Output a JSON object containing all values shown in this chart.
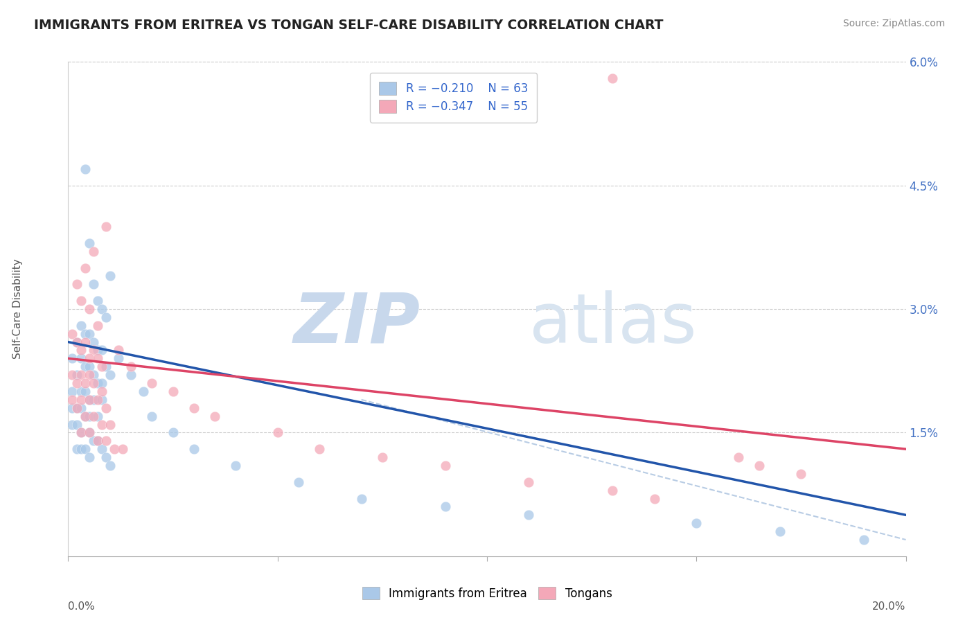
{
  "title": "IMMIGRANTS FROM ERITREA VS TONGAN SELF-CARE DISABILITY CORRELATION CHART",
  "source": "Source: ZipAtlas.com",
  "ylabel": "Self-Care Disability",
  "xlim": [
    0.0,
    0.2
  ],
  "ylim": [
    0.0,
    0.06
  ],
  "yticks_right": [
    0.0,
    0.015,
    0.03,
    0.045,
    0.06
  ],
  "ytick_labels_right": [
    "",
    "1.5%",
    "3.0%",
    "4.5%",
    "6.0%"
  ],
  "xticks": [
    0.0,
    0.05,
    0.1,
    0.15,
    0.2
  ],
  "scatter_blue": [
    [
      0.004,
      0.047
    ],
    [
      0.005,
      0.038
    ],
    [
      0.01,
      0.034
    ],
    [
      0.006,
      0.033
    ],
    [
      0.007,
      0.031
    ],
    [
      0.008,
      0.03
    ],
    [
      0.009,
      0.029
    ],
    [
      0.003,
      0.028
    ],
    [
      0.004,
      0.027
    ],
    [
      0.005,
      0.027
    ],
    [
      0.002,
      0.026
    ],
    [
      0.006,
      0.026
    ],
    [
      0.007,
      0.025
    ],
    [
      0.008,
      0.025
    ],
    [
      0.001,
      0.024
    ],
    [
      0.003,
      0.024
    ],
    [
      0.004,
      0.023
    ],
    [
      0.005,
      0.023
    ],
    [
      0.009,
      0.023
    ],
    [
      0.01,
      0.022
    ],
    [
      0.002,
      0.022
    ],
    [
      0.006,
      0.022
    ],
    [
      0.007,
      0.021
    ],
    [
      0.008,
      0.021
    ],
    [
      0.001,
      0.02
    ],
    [
      0.003,
      0.02
    ],
    [
      0.004,
      0.02
    ],
    [
      0.005,
      0.019
    ],
    [
      0.006,
      0.019
    ],
    [
      0.008,
      0.019
    ],
    [
      0.001,
      0.018
    ],
    [
      0.002,
      0.018
    ],
    [
      0.003,
      0.018
    ],
    [
      0.004,
      0.017
    ],
    [
      0.005,
      0.017
    ],
    [
      0.007,
      0.017
    ],
    [
      0.001,
      0.016
    ],
    [
      0.002,
      0.016
    ],
    [
      0.003,
      0.015
    ],
    [
      0.005,
      0.015
    ],
    [
      0.006,
      0.014
    ],
    [
      0.007,
      0.014
    ],
    [
      0.002,
      0.013
    ],
    [
      0.003,
      0.013
    ],
    [
      0.004,
      0.013
    ],
    [
      0.008,
      0.013
    ],
    [
      0.005,
      0.012
    ],
    [
      0.009,
      0.012
    ],
    [
      0.01,
      0.011
    ],
    [
      0.012,
      0.024
    ],
    [
      0.015,
      0.022
    ],
    [
      0.018,
      0.02
    ],
    [
      0.02,
      0.017
    ],
    [
      0.025,
      0.015
    ],
    [
      0.03,
      0.013
    ],
    [
      0.04,
      0.011
    ],
    [
      0.055,
      0.009
    ],
    [
      0.07,
      0.007
    ],
    [
      0.09,
      0.006
    ],
    [
      0.11,
      0.005
    ],
    [
      0.15,
      0.004
    ],
    [
      0.17,
      0.003
    ],
    [
      0.19,
      0.002
    ]
  ],
  "scatter_pink": [
    [
      0.002,
      0.033
    ],
    [
      0.004,
      0.035
    ],
    [
      0.009,
      0.04
    ],
    [
      0.006,
      0.037
    ],
    [
      0.003,
      0.031
    ],
    [
      0.005,
      0.03
    ],
    [
      0.007,
      0.028
    ],
    [
      0.001,
      0.027
    ],
    [
      0.002,
      0.026
    ],
    [
      0.004,
      0.026
    ],
    [
      0.006,
      0.025
    ],
    [
      0.003,
      0.025
    ],
    [
      0.005,
      0.024
    ],
    [
      0.007,
      0.024
    ],
    [
      0.008,
      0.023
    ],
    [
      0.001,
      0.022
    ],
    [
      0.003,
      0.022
    ],
    [
      0.005,
      0.022
    ],
    [
      0.002,
      0.021
    ],
    [
      0.004,
      0.021
    ],
    [
      0.006,
      0.021
    ],
    [
      0.008,
      0.02
    ],
    [
      0.001,
      0.019
    ],
    [
      0.003,
      0.019
    ],
    [
      0.005,
      0.019
    ],
    [
      0.007,
      0.019
    ],
    [
      0.009,
      0.018
    ],
    [
      0.002,
      0.018
    ],
    [
      0.004,
      0.017
    ],
    [
      0.006,
      0.017
    ],
    [
      0.008,
      0.016
    ],
    [
      0.01,
      0.016
    ],
    [
      0.012,
      0.025
    ],
    [
      0.003,
      0.015
    ],
    [
      0.005,
      0.015
    ],
    [
      0.007,
      0.014
    ],
    [
      0.009,
      0.014
    ],
    [
      0.011,
      0.013
    ],
    [
      0.013,
      0.013
    ],
    [
      0.015,
      0.023
    ],
    [
      0.02,
      0.021
    ],
    [
      0.025,
      0.02
    ],
    [
      0.03,
      0.018
    ],
    [
      0.035,
      0.017
    ],
    [
      0.05,
      0.015
    ],
    [
      0.06,
      0.013
    ],
    [
      0.075,
      0.012
    ],
    [
      0.09,
      0.011
    ],
    [
      0.11,
      0.009
    ],
    [
      0.13,
      0.008
    ],
    [
      0.16,
      0.012
    ],
    [
      0.165,
      0.011
    ],
    [
      0.14,
      0.007
    ],
    [
      0.175,
      0.01
    ],
    [
      0.13,
      0.058
    ]
  ],
  "blue_line_x": [
    0.0,
    0.2
  ],
  "blue_line_y": [
    0.026,
    0.005
  ],
  "pink_line_x": [
    0.0,
    0.2
  ],
  "pink_line_y": [
    0.024,
    0.013
  ],
  "dashed_line_x": [
    0.07,
    0.2
  ],
  "dashed_line_y": [
    0.019,
    0.002
  ],
  "blue_color": "#a8c8e8",
  "pink_color": "#f4a8b8",
  "blue_line_color": "#2255aa",
  "pink_line_color": "#dd4466",
  "dashed_line_color": "#b8cce4",
  "background_color": "#ffffff",
  "grid_color": "#cccccc",
  "title_color": "#222222",
  "watermark_zip": "ZIP",
  "watermark_atlas": "atlas",
  "watermark_color": "#dde6f0"
}
